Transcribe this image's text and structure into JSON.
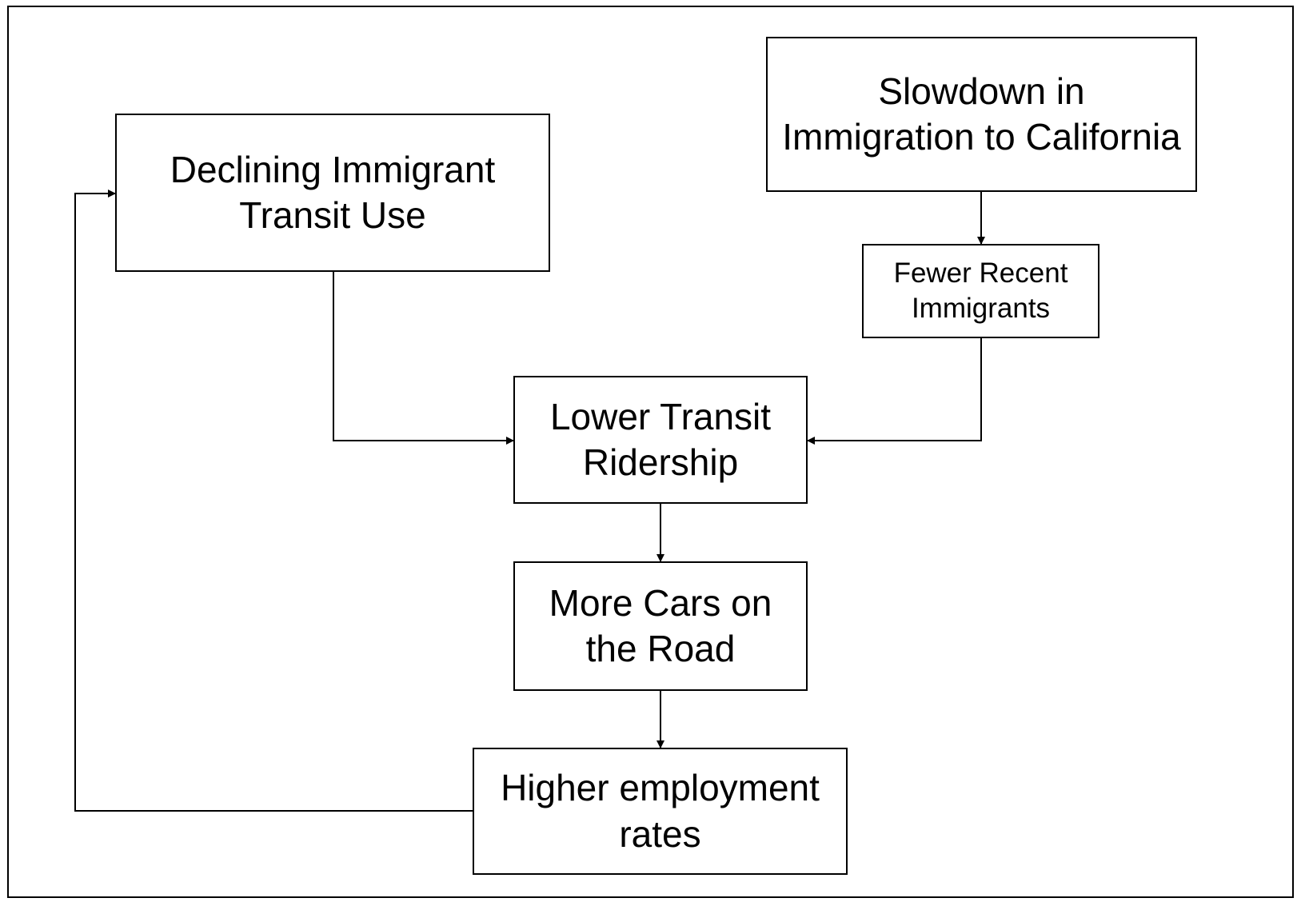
{
  "nodes": [
    {
      "lines": [
        "Slowdown in",
        "Immigration to California"
      ]
    },
    {
      "lines": [
        "Declining Immigrant",
        "Transit Use"
      ]
    },
    {
      "lines": [
        "Fewer Recent",
        "Immigrants"
      ]
    },
    {
      "lines": [
        "Lower Transit",
        "Ridership"
      ]
    },
    {
      "lines": [
        "More Cars on",
        "the Road"
      ]
    },
    {
      "lines": [
        "Higher employment",
        "rates"
      ]
    }
  ]
}
